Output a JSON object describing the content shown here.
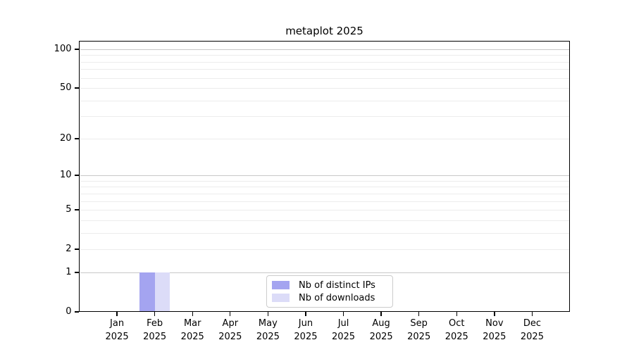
{
  "title": "metaplot 2025",
  "chart_data": {
    "type": "bar",
    "title": "metaplot 2025",
    "x_months": [
      "Jan",
      "Feb",
      "Mar",
      "Apr",
      "May",
      "Jun",
      "Jul",
      "Aug",
      "Sep",
      "Oct",
      "Nov",
      "Dec"
    ],
    "x_year": "2025",
    "series": [
      {
        "name": "Nb of distinct IPs",
        "color": "#a4a4f0",
        "values": [
          0,
          1,
          0,
          0,
          0,
          0,
          0,
          0,
          0,
          0,
          0,
          0
        ]
      },
      {
        "name": "Nb of downloads",
        "color": "#dcdcf8",
        "values": [
          0,
          1,
          0,
          0,
          0,
          0,
          0,
          0,
          0,
          0,
          0,
          0
        ]
      }
    ],
    "y_scale": "log1p",
    "y_ticks": [
      0,
      1,
      2,
      5,
      10,
      20,
      50,
      100
    ],
    "ylim": [
      0,
      116
    ],
    "gridlines_major": [
      1,
      10,
      100
    ],
    "gridlines_minor": [
      2,
      3,
      4,
      5,
      6,
      7,
      8,
      9,
      20,
      30,
      40,
      50,
      60,
      70,
      80,
      90
    ],
    "grid_color_major": "#c8c8c8",
    "grid_color_minor": "#ececec",
    "legend_position": "lower center",
    "grid_on": true
  }
}
